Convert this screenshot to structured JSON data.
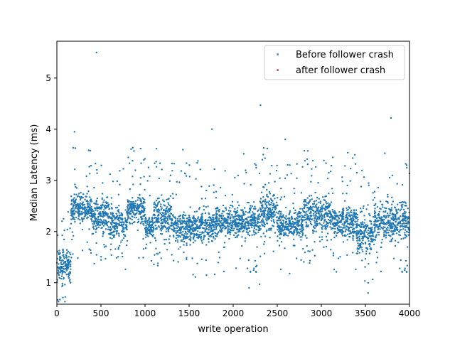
{
  "chart_data": {
    "type": "scatter",
    "xlabel": "write operation",
    "ylabel": "Median Latency (ms)",
    "xlim": [
      0,
      4000
    ],
    "ylim": [
      0.58,
      5.72
    ],
    "xticks": [
      0,
      500,
      1000,
      1500,
      2000,
      2500,
      3000,
      3500,
      4000
    ],
    "yticks": [
      1,
      2,
      3,
      4,
      5
    ],
    "grid": false,
    "legend_position": "top-right",
    "series": [
      {
        "name": "Before follower crash",
        "color": "#1f77b4",
        "marker_size": 1.2,
        "approx_point_count": 4000,
        "outliers": [
          [
            450,
            5.5
          ],
          [
            2310,
            4.47
          ],
          [
            200,
            3.95
          ],
          [
            1760,
            4.0
          ],
          [
            3790,
            4.22
          ],
          [
            2590,
            3.8
          ],
          [
            1130,
            3.62
          ],
          [
            1430,
            3.6
          ],
          [
            380,
            3.58
          ],
          [
            2120,
            3.52
          ],
          [
            3720,
            3.53
          ],
          [
            3300,
            3.54
          ],
          [
            3380,
            3.5
          ],
          [
            3130,
            3.45
          ],
          [
            1600,
            3.38
          ],
          [
            810,
            3.45
          ],
          [
            2300,
            0.97
          ],
          [
            3530,
            0.8
          ],
          [
            2180,
            0.9
          ],
          [
            60,
            0.93
          ]
        ],
        "segments": [
          {
            "x": [
              0,
              160
            ],
            "center": 1.35,
            "spread": 0.2
          },
          {
            "x": [
              160,
              400
            ],
            "center": 2.45,
            "spread": 0.2
          },
          {
            "x": [
              400,
              600
            ],
            "center": 2.3,
            "spread": 0.25
          },
          {
            "x": [
              600,
              800
            ],
            "center": 2.15,
            "spread": 0.2
          },
          {
            "x": [
              800,
              1000
            ],
            "center": 2.45,
            "spread": 0.2
          },
          {
            "x": [
              1000,
              1100
            ],
            "center": 2.1,
            "spread": 0.15
          },
          {
            "x": [
              1100,
              1300
            ],
            "center": 2.3,
            "spread": 0.25
          },
          {
            "x": [
              1300,
              1500
            ],
            "center": 2.1,
            "spread": 0.2
          },
          {
            "x": [
              1500,
              1800
            ],
            "center": 2.1,
            "spread": 0.2
          },
          {
            "x": [
              1800,
              2300
            ],
            "center": 2.2,
            "spread": 0.2
          },
          {
            "x": [
              2300,
              2500
            ],
            "center": 2.4,
            "spread": 0.25
          },
          {
            "x": [
              2500,
              2800
            ],
            "center": 2.15,
            "spread": 0.2
          },
          {
            "x": [
              2800,
              3100
            ],
            "center": 2.35,
            "spread": 0.25
          },
          {
            "x": [
              3100,
              3400
            ],
            "center": 2.2,
            "spread": 0.2
          },
          {
            "x": [
              3400,
              3600
            ],
            "center": 1.95,
            "spread": 0.3
          },
          {
            "x": [
              3600,
              4000
            ],
            "center": 2.2,
            "spread": 0.25
          }
        ]
      },
      {
        "name": "after follower crash",
        "color": "#d62728",
        "marker_size": 1.2,
        "points": []
      }
    ]
  }
}
